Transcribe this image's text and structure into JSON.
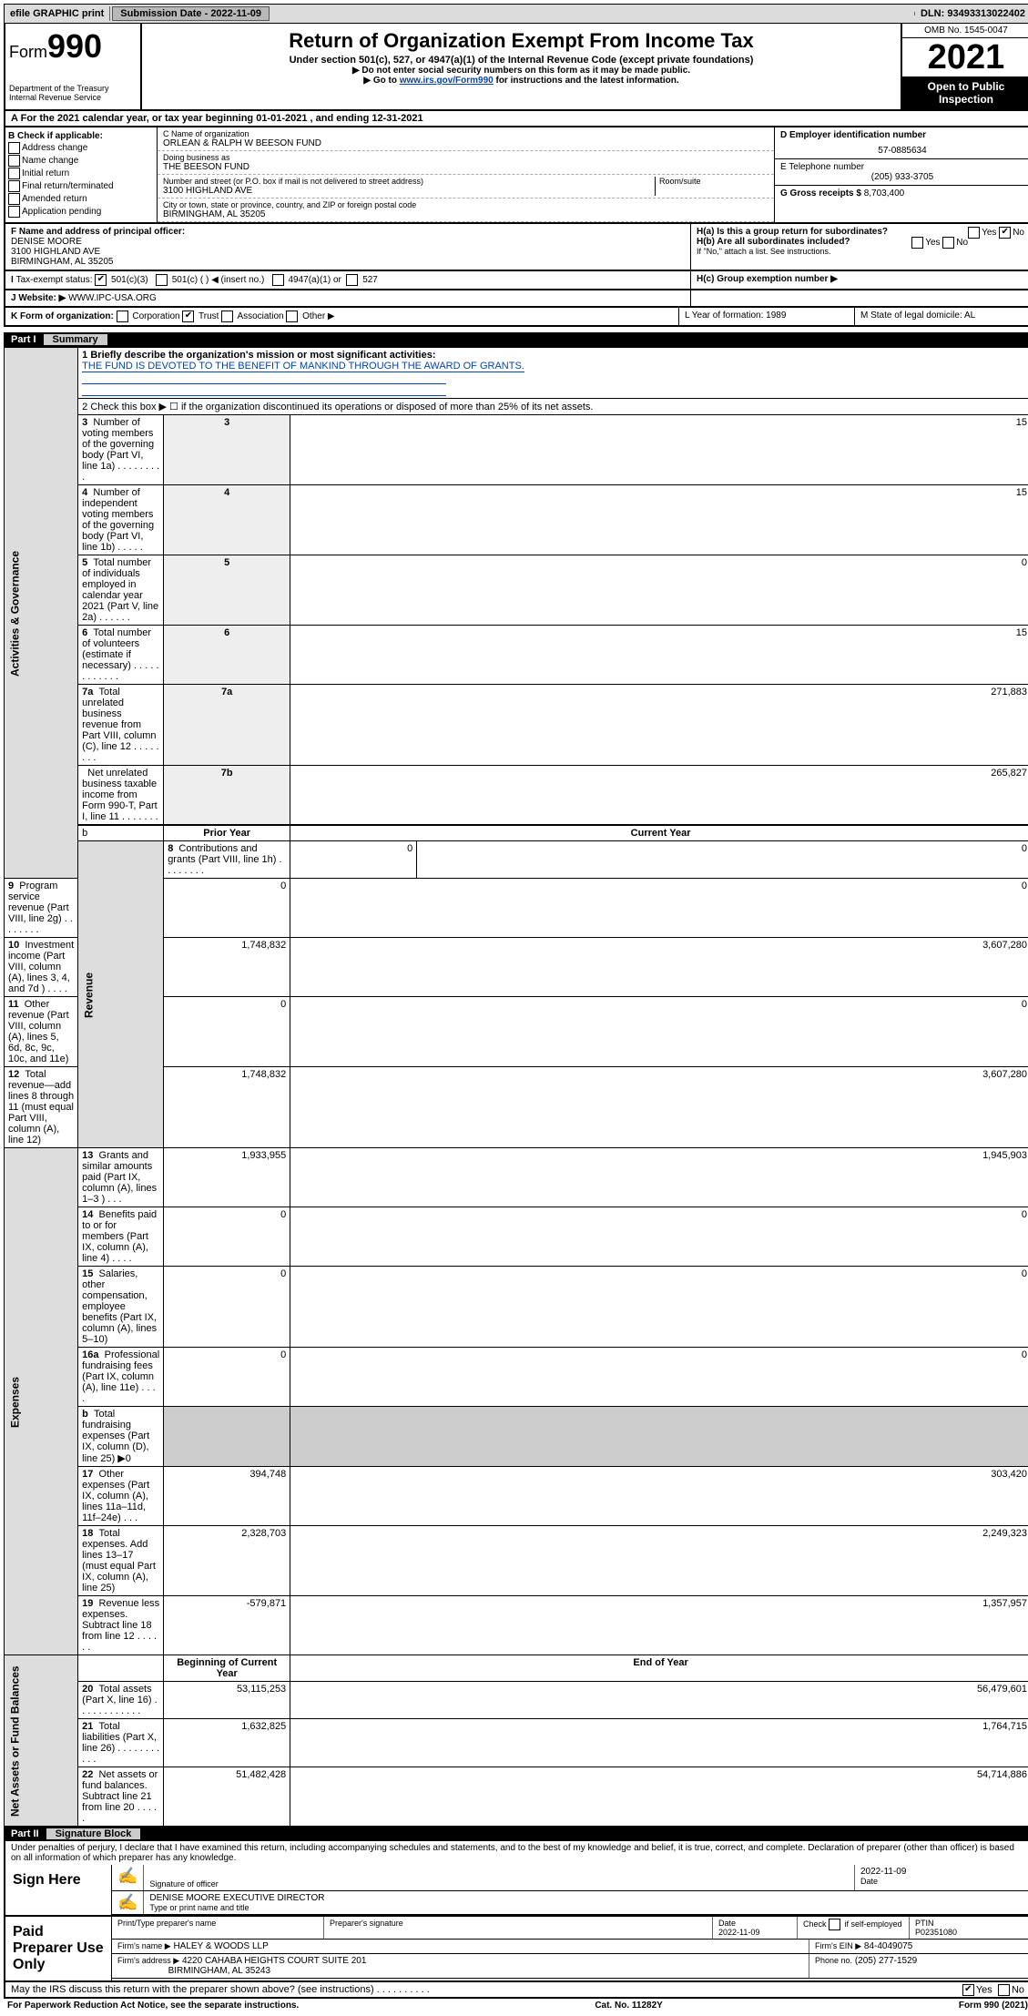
{
  "top_bar": {
    "efile": "efile GRAPHIC print",
    "submission_label": "Submission Date - 2022-11-09",
    "dln": "DLN: 93493313022402"
  },
  "header": {
    "form_label": "Form",
    "form_number": "990",
    "dept": "Department of the Treasury",
    "irs": "Internal Revenue Service",
    "title": "Return of Organization Exempt From Income Tax",
    "subtitle": "Under section 501(c), 527, or 4947(a)(1) of the Internal Revenue Code (except private foundations)",
    "note1": "▶ Do not enter social security numbers on this form as it may be made public.",
    "note2_pre": "▶ Go to ",
    "note2_link": "www.irs.gov/Form990",
    "note2_post": " for instructions and the latest information.",
    "omb": "OMB No. 1545-0047",
    "year": "2021",
    "open": "Open to Public Inspection"
  },
  "row_a": "For the 2021 calendar year, or tax year beginning 01-01-2021  , and ending 12-31-2021",
  "col_b": {
    "label": "B Check if applicable:",
    "items": [
      "Address change",
      "Name change",
      "Initial return",
      "Final return/terminated",
      "Amended return",
      "Application pending"
    ]
  },
  "col_c": {
    "name_label": "C Name of organization",
    "name": "ORLEAN & RALPH W BEESON FUND",
    "dba_label": "Doing business as",
    "dba": "THE BEESON FUND",
    "street_label": "Number and street (or P.O. box if mail is not delivered to street address)",
    "street": "3100 HIGHLAND AVE",
    "room_label": "Room/suite",
    "city_label": "City or town, state or province, country, and ZIP or foreign postal code",
    "city": "BIRMINGHAM, AL  35205"
  },
  "col_d": {
    "ein_label": "D Employer identification number",
    "ein": "57-0885634",
    "tel_label": "E Telephone number",
    "tel": "(205) 933-3705",
    "gross_label": "G Gross receipts $ ",
    "gross": "8,703,400"
  },
  "row_f": {
    "f_label": "F Name and address of principal officer:",
    "f_name": "DENISE MOORE",
    "f_addr1": "3100 HIGHLAND AVE",
    "f_addr2": "BIRMINGHAM, AL  35205",
    "ha": "H(a)  Is this a group return for subordinates?",
    "hb": "H(b)  Are all subordinates included?",
    "hb_note": "If \"No,\" attach a list. See instructions.",
    "yes": "Yes",
    "no": "No"
  },
  "row_i": {
    "label": "Tax-exempt status:",
    "opt1": "501(c)(3)",
    "opt2": "501(c) (  ) ◀ (insert no.)",
    "opt3": "4947(a)(1) or",
    "opt4": "527",
    "hc": "H(c)  Group exemption number ▶"
  },
  "row_j": {
    "label": "Website: ▶",
    "site": "WWW.IPC-USA.ORG"
  },
  "row_k": {
    "label": "K Form of organization:",
    "opts": [
      "Corporation",
      "Trust",
      "Association",
      "Other ▶"
    ],
    "l": "L Year of formation: 1989",
    "m": "M State of legal domicile: AL"
  },
  "part1": {
    "num": "Part I",
    "title": "Summary"
  },
  "line1": {
    "label": "1  Briefly describe the organization's mission or most significant activities:",
    "text": "THE FUND IS DEVOTED TO THE BENEFIT OF MANKIND THROUGH THE AWARD OF GRANTS."
  },
  "line2": "2   Check this box ▶ ☐  if the organization discontinued its operations or disposed of more than 25% of its net assets.",
  "summary_rows": [
    {
      "n": "3",
      "d": "Number of voting members of the governing body (Part VI, line 1a)  .   .   .   .   .   .   .   .   .",
      "r": "3",
      "v": "15"
    },
    {
      "n": "4",
      "d": "Number of independent voting members of the governing body (Part VI, line 1b)  .   .   .   .   .",
      "r": "4",
      "v": "15"
    },
    {
      "n": "5",
      "d": "Total number of individuals employed in calendar year 2021 (Part V, line 2a)  .   .   .   .   .   .",
      "r": "5",
      "v": "0"
    },
    {
      "n": "6",
      "d": "Total number of volunteers (estimate if necessary)  .   .   .   .   .   .   .   .   .   .   .   .",
      "r": "6",
      "v": "15"
    },
    {
      "n": "7a",
      "d": "Total unrelated business revenue from Part VIII, column (C), line 12  .   .   .   .   .   .   .   .",
      "r": "7a",
      "v": "271,883"
    },
    {
      "n": "",
      "d": "Net unrelated business taxable income from Form 990-T, Part I, line 11  .   .   .   .   .   .   .",
      "r": "7b",
      "v": "265,827"
    }
  ],
  "rev_hdr": {
    "prior": "Prior Year",
    "current": "Current Year"
  },
  "rev_rows": [
    {
      "n": "8",
      "d": "Contributions and grants (Part VIII, line 1h)  .   .   .   .   .   .   .   .",
      "p": "0",
      "c": "0"
    },
    {
      "n": "9",
      "d": "Program service revenue (Part VIII, line 2g)  .   .   .   .   .   .   .   .",
      "p": "0",
      "c": "0"
    },
    {
      "n": "10",
      "d": "Investment income (Part VIII, column (A), lines 3, 4, and 7d )  .   .   .   .",
      "p": "1,748,832",
      "c": "3,607,280"
    },
    {
      "n": "11",
      "d": "Other revenue (Part VIII, column (A), lines 5, 6d, 8c, 9c, 10c, and 11e)",
      "p": "0",
      "c": "0"
    },
    {
      "n": "12",
      "d": "Total revenue—add lines 8 through 11 (must equal Part VIII, column (A), line 12)",
      "p": "1,748,832",
      "c": "3,607,280"
    }
  ],
  "exp_rows": [
    {
      "n": "13",
      "d": "Grants and similar amounts paid (Part IX, column (A), lines 1–3 )  .   .   .",
      "p": "1,933,955",
      "c": "1,945,903"
    },
    {
      "n": "14",
      "d": "Benefits paid to or for members (Part IX, column (A), line 4)  .   .   .   .",
      "p": "0",
      "c": "0"
    },
    {
      "n": "15",
      "d": "Salaries, other compensation, employee benefits (Part IX, column (A), lines 5–10)",
      "p": "0",
      "c": "0"
    },
    {
      "n": "16a",
      "d": "Professional fundraising fees (Part IX, column (A), line 11e)  .   .   .   .",
      "p": "0",
      "c": "0"
    },
    {
      "n": "b",
      "d": "Total fundraising expenses (Part IX, column (D), line 25) ▶0",
      "p": "",
      "c": "",
      "gray": true
    },
    {
      "n": "17",
      "d": "Other expenses (Part IX, column (A), lines 11a–11d, 11f–24e)  .   .   .",
      "p": "394,748",
      "c": "303,420"
    },
    {
      "n": "18",
      "d": "Total expenses. Add lines 13–17 (must equal Part IX, column (A), line 25)",
      "p": "2,328,703",
      "c": "2,249,323"
    },
    {
      "n": "19",
      "d": "Revenue less expenses. Subtract line 18 from line 12  .   .   .   .   .   .",
      "p": "-579,871",
      "c": "1,357,957"
    }
  ],
  "na_hdr": {
    "begin": "Beginning of Current Year",
    "end": "End of Year"
  },
  "na_rows": [
    {
      "n": "20",
      "d": "Total assets (Part X, line 16)  .   .   .   .   .   .   .   .   .   .   .   .",
      "p": "53,115,253",
      "c": "56,479,601"
    },
    {
      "n": "21",
      "d": "Total liabilities (Part X, line 26)  .   .   .   .   .   .   .   .   .   .   .",
      "p": "1,632,825",
      "c": "1,764,715"
    },
    {
      "n": "22",
      "d": "Net assets or fund balances. Subtract line 21 from line 20 .   .   .   .   .",
      "p": "51,482,428",
      "c": "54,714,886"
    }
  ],
  "vlabels": {
    "gov": "Activities & Governance",
    "rev": "Revenue",
    "exp": "Expenses",
    "na": "Net Assets or Fund Balances"
  },
  "part2": {
    "num": "Part II",
    "title": "Signature Block"
  },
  "penalties": "Under penalties of perjury, I declare that I have examined this return, including accompanying schedules and statements, and to the best of my knowledge and belief, it is true, correct, and complete. Declaration of preparer (other than officer) is based on all information of which preparer has any knowledge.",
  "sign": {
    "label": "Sign Here",
    "sig_of_officer": "Signature of officer",
    "date": "Date",
    "date_val": "2022-11-09",
    "name": "DENISE MOORE  EXECUTIVE DIRECTOR",
    "name_label": "Type or print name and title"
  },
  "preparer": {
    "label": "Paid Preparer Use Only",
    "col1": "Print/Type preparer's name",
    "col2": "Preparer's signature",
    "col3": "Date",
    "date": "2022-11-09",
    "col4_a": "Check",
    "col4_b": "if self-employed",
    "ptin_label": "PTIN",
    "ptin": "P02351080",
    "firm_name_label": "Firm's name    ▶",
    "firm_name": "HALEY & WOODS LLP",
    "firm_ein_label": "Firm's EIN ▶",
    "firm_ein": "84-4049075",
    "firm_addr_label": "Firm's address ▶",
    "firm_addr1": "4220 CAHABA HEIGHTS COURT SUITE 201",
    "firm_addr2": "BIRMINGHAM, AL  35243",
    "phone_label": "Phone no.",
    "phone": "(205) 277-1529"
  },
  "discuss": {
    "q": "May the IRS discuss this return with the preparer shown above? (see instructions)  .   .   .   .   .   .   .   .   .   .",
    "yes": "Yes",
    "no": "No"
  },
  "footer": {
    "pra": "For Paperwork Reduction Act Notice, see the separate instructions.",
    "cat": "Cat. No. 11282Y",
    "form": "Form 990 (2021)"
  }
}
